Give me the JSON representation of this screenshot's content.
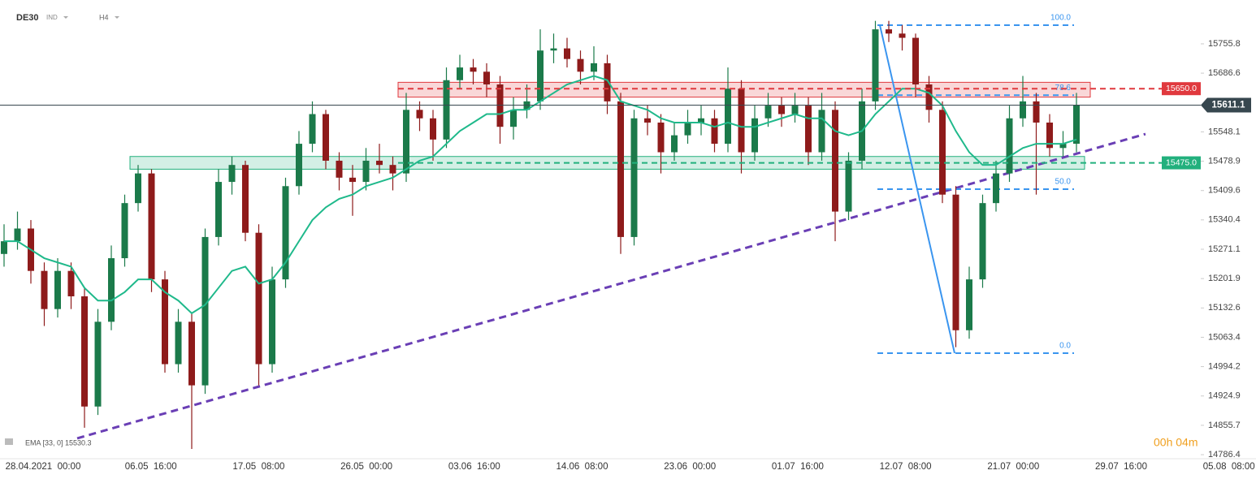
{
  "header": {
    "symbol": "DE30",
    "market": "IND",
    "interval": "H4"
  },
  "chart_data": {
    "type": "candlestick",
    "open": [
      15260,
      15290,
      15320,
      15220,
      15130,
      15220,
      15160,
      14900,
      15100,
      15250,
      15380,
      15450,
      15200,
      15000,
      15100,
      14950,
      15300,
      15430,
      15470,
      15310,
      15000,
      15200,
      15420,
      15520,
      15590,
      15480,
      15440,
      15430,
      15480,
      15470,
      15450,
      15600,
      15580,
      15530,
      15670,
      15700,
      15690,
      15660,
      15560,
      15600,
      15620,
      15740,
      15745,
      15720,
      15690,
      15710,
      15620,
      15300,
      15580,
      15570,
      15500,
      15540,
      15570,
      15580,
      15520,
      15650,
      15500,
      15580,
      15610,
      15590,
      15610,
      15500,
      15600,
      15360,
      15480,
      15620,
      15790,
      15780,
      15770,
      15660,
      15600,
      15400,
      15080,
      15200,
      15380,
      15450,
      15580,
      15620,
      15570,
      15510,
      15520
    ],
    "high": [
      15330,
      15360,
      15340,
      15240,
      15250,
      15240,
      15180,
      15130,
      15280,
      15400,
      15470,
      15460,
      15220,
      15130,
      15120,
      15320,
      15460,
      15490,
      15480,
      15330,
      15230,
      15440,
      15550,
      15620,
      15600,
      15500,
      15470,
      15510,
      15520,
      15490,
      15640,
      15620,
      15600,
      15700,
      15730,
      15720,
      15710,
      15680,
      15630,
      15660,
      15790,
      15780,
      15770,
      15740,
      15750,
      15730,
      15640,
      15600,
      15610,
      15590,
      15570,
      15600,
      15610,
      15600,
      15700,
      15670,
      15610,
      15640,
      15630,
      15640,
      15630,
      15640,
      15620,
      15500,
      15650,
      15810,
      15810,
      15800,
      15780,
      15680,
      15620,
      15420,
      15230,
      15400,
      15480,
      15610,
      15680,
      15640,
      15590,
      15550,
      15640
    ],
    "low": [
      15230,
      15270,
      15190,
      15090,
      15110,
      15130,
      14850,
      14880,
      15080,
      15230,
      15360,
      15170,
      14980,
      14980,
      14800,
      14930,
      15280,
      15400,
      15290,
      14950,
      14980,
      15180,
      15400,
      15500,
      15460,
      15410,
      15350,
      15410,
      15450,
      15410,
      15430,
      15550,
      15480,
      15510,
      15650,
      15660,
      15630,
      15520,
      15530,
      15580,
      15600,
      15710,
      15700,
      15660,
      15670,
      15590,
      15260,
      15280,
      15540,
      15450,
      15480,
      15520,
      15540,
      15500,
      15500,
      15450,
      15480,
      15560,
      15560,
      15570,
      15470,
      15480,
      15290,
      15340,
      15460,
      15600,
      15760,
      15740,
      15630,
      15570,
      15380,
      15040,
      15060,
      15180,
      15360,
      15430,
      15560,
      15400,
      15490,
      15490,
      15500
    ],
    "close": [
      15290,
      15320,
      15220,
      15130,
      15220,
      15160,
      14900,
      15100,
      15250,
      15380,
      15450,
      15200,
      15000,
      15100,
      14950,
      15300,
      15430,
      15470,
      15310,
      15000,
      15200,
      15420,
      15520,
      15590,
      15480,
      15440,
      15430,
      15480,
      15470,
      15450,
      15600,
      15580,
      15530,
      15670,
      15700,
      15690,
      15660,
      15560,
      15600,
      15620,
      15740,
      15745,
      15720,
      15690,
      15710,
      15620,
      15300,
      15580,
      15570,
      15500,
      15540,
      15570,
      15580,
      15520,
      15650,
      15500,
      15580,
      15610,
      15590,
      15610,
      15500,
      15600,
      15360,
      15480,
      15620,
      15790,
      15780,
      15770,
      15660,
      15600,
      15400,
      15080,
      15200,
      15380,
      15450,
      15580,
      15620,
      15570,
      15510,
      15520,
      15611
    ],
    "ema": {
      "name": "EMA [33, 0] 15530.3",
      "color": "#1fb98b",
      "values": [
        15290,
        15290,
        15270,
        15250,
        15240,
        15230,
        15180,
        15150,
        15150,
        15170,
        15200,
        15200,
        15170,
        15150,
        15120,
        15140,
        15180,
        15220,
        15230,
        15190,
        15200,
        15240,
        15290,
        15340,
        15370,
        15390,
        15400,
        15420,
        15430,
        15440,
        15460,
        15480,
        15490,
        15520,
        15550,
        15570,
        15590,
        15590,
        15600,
        15600,
        15620,
        15640,
        15660,
        15670,
        15680,
        15670,
        15620,
        15610,
        15600,
        15580,
        15570,
        15570,
        15570,
        15560,
        15570,
        15560,
        15560,
        15570,
        15580,
        15590,
        15580,
        15580,
        15550,
        15540,
        15550,
        15590,
        15620,
        15650,
        15650,
        15640,
        15610,
        15550,
        15500,
        15470,
        15470,
        15490,
        15510,
        15520,
        15520,
        15520,
        15530
      ]
    },
    "up_color": "#1b7a4a",
    "down_color": "#8e1b1b",
    "ylim": [
      14776.9,
      15859.2
    ],
    "yticks": [
      15755.8,
      15686.6,
      15548.1,
      15478.9,
      15409.6,
      15340.4,
      15271.1,
      15201.9,
      15132.6,
      15063.4,
      14994.2,
      14924.9,
      14855.7,
      14786.4
    ],
    "xlabels": [
      "28.04.2021  00:00",
      "06.05  16:00",
      "17.05  08:00",
      "26.05  00:00",
      "03.06  16:00",
      "14.06  08:00",
      "23.06  00:00",
      "01.07  16:00",
      "12.07  08:00",
      "21.07  00:00",
      "29.07  16:00",
      "05.08  08:00"
    ],
    "current_price": 15611.1,
    "levels": [
      {
        "value": 15650,
        "label": "15650.0",
        "color": "#e0393e"
      },
      {
        "value": 15475,
        "label": "15475.0",
        "color": "#22b07d"
      }
    ],
    "zones": [
      {
        "low": 15630,
        "high": 15665,
        "color": "#e0393e"
      },
      {
        "low": 15460,
        "high": 15490,
        "color": "#22b07d"
      }
    ],
    "fibonacci": [
      {
        "label": "100.0",
        "value": 15799.9
      },
      {
        "label": "78.6",
        "value": 15634.6
      },
      {
        "label": "50.0",
        "value": 15412.9
      },
      {
        "label": "0.0",
        "value": 15025.9
      }
    ],
    "trendline": {
      "start": 14825,
      "end": 15543
    },
    "timer": "00h 04m"
  }
}
